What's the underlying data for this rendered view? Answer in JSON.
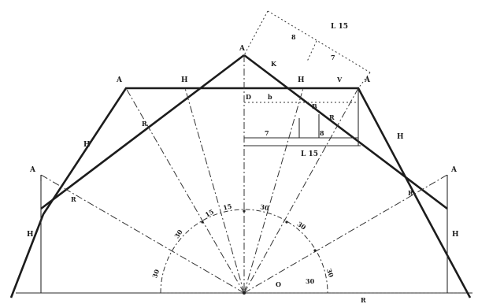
{
  "labels": {
    "apex": "A",
    "left_corner": "A",
    "right_corner": "A",
    "left_side": "A",
    "right_side": "A",
    "h_upper_left": "H",
    "h_mid_left": "H",
    "h_low_left": "H",
    "h_upper_right": "H",
    "h_mid_right": "H",
    "h_low_right": "H",
    "d_top": "D",
    "b_top": "b",
    "r_left": "R",
    "r_right": "R",
    "r_left_diag": "R",
    "r_right_diag": "R",
    "r_bottom": "R",
    "b_low": "B",
    "o_center": "O",
    "l15_top": "L 15",
    "l15_mid": "L 15",
    "eight_top": "8",
    "seven_top": "7",
    "seven_mid": "7",
    "eight_mid": "8",
    "v_top": "V",
    "k_mid": "K",
    "angle_30_left_low": "30",
    "angle_30_left": "30",
    "angle_15_a": "15",
    "angle_15_b": "15",
    "angle_30_right": "30",
    "angle_30_right_b": "30",
    "angle_30_right_low": "30",
    "angle_30_bottom": "30"
  }
}
